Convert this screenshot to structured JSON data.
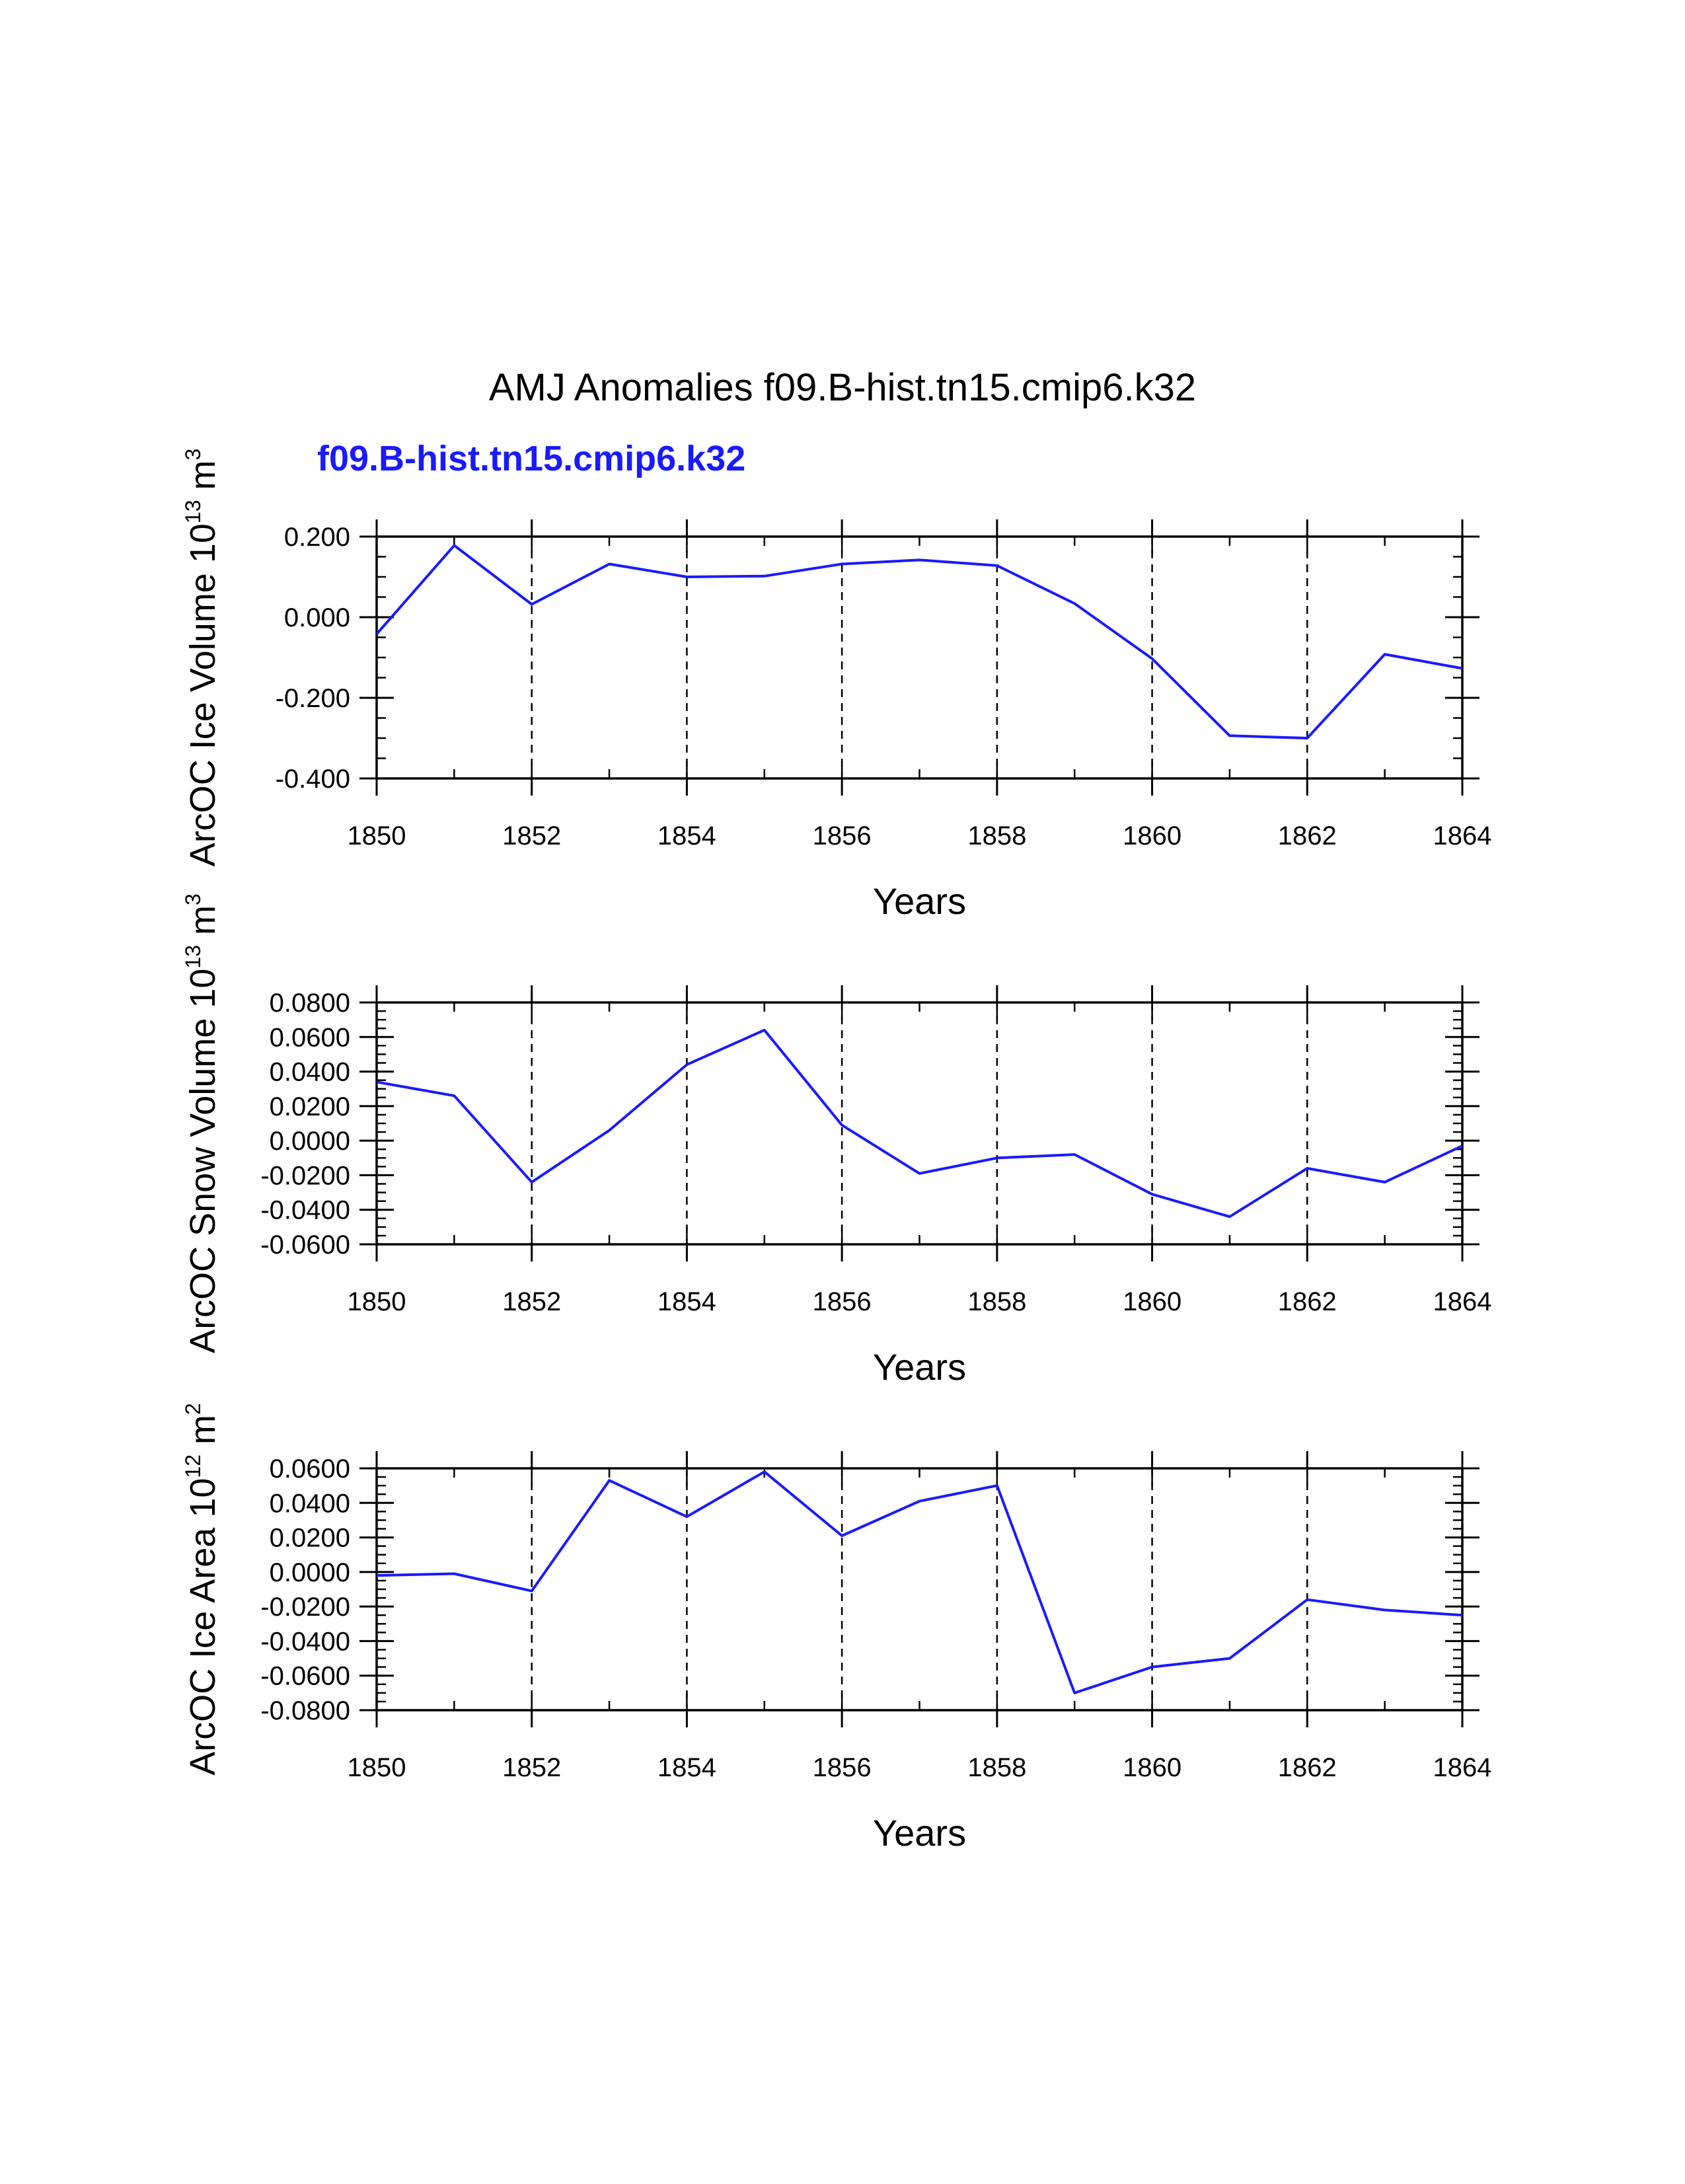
{
  "title": "AMJ Anomalies f09.B-hist.tn15.cmip6.k32",
  "subtitle": "f09.B-hist.tn15.cmip6.k32",
  "colors": {
    "line": "#1a1aff",
    "subtitle": "#1a1aff",
    "axis": "#000000",
    "grid": "#000000"
  },
  "chart_data": [
    {
      "type": "line",
      "ylabel_main": "ArcOC Ice Volume 10",
      "ylabel_exp": "13",
      "ylabel_unit": " m",
      "ylabel_unit_exp": "3",
      "xlabel": "Years",
      "xlim": [
        1850,
        1864
      ],
      "ylim": [
        -0.4,
        0.2
      ],
      "yticks": [
        -0.4,
        -0.2,
        0.0,
        0.2
      ],
      "ytick_labels": [
        "-0.400",
        "-0.200",
        "0.000",
        "0.200"
      ],
      "yminor_step": 0.05,
      "xticks": [
        1850,
        1852,
        1854,
        1856,
        1858,
        1860,
        1862,
        1864
      ],
      "xtick_labels": [
        "1850",
        "1852",
        "1854",
        "1856",
        "1858",
        "1860",
        "1862",
        "1864"
      ],
      "grid_x": [
        1852,
        1854,
        1856,
        1858,
        1860,
        1862
      ],
      "x": [
        1850,
        1851,
        1852,
        1853,
        1854,
        1855,
        1856,
        1857,
        1858,
        1859,
        1860,
        1861,
        1862,
        1863,
        1864
      ],
      "values": [
        -0.042,
        0.178,
        0.032,
        0.132,
        0.1,
        0.102,
        0.132,
        0.142,
        0.128,
        0.034,
        -0.103,
        -0.294,
        -0.3,
        -0.092,
        -0.127
      ]
    },
    {
      "type": "line",
      "ylabel_main": "ArcOC Snow Volume 10",
      "ylabel_exp": "13",
      "ylabel_unit": " m",
      "ylabel_unit_exp": "3",
      "xlabel": "Years",
      "xlim": [
        1850,
        1864
      ],
      "ylim": [
        -0.06,
        0.08
      ],
      "yticks": [
        -0.06,
        -0.04,
        -0.02,
        0.0,
        0.02,
        0.04,
        0.06,
        0.08
      ],
      "ytick_labels": [
        "-0.0600",
        "-0.0400",
        "-0.0200",
        "0.0000",
        "0.0200",
        "0.0400",
        "0.0600",
        "0.0800"
      ],
      "yminor_step": 0.005,
      "xticks": [
        1850,
        1852,
        1854,
        1856,
        1858,
        1860,
        1862,
        1864
      ],
      "xtick_labels": [
        "1850",
        "1852",
        "1854",
        "1856",
        "1858",
        "1860",
        "1862",
        "1864"
      ],
      "grid_x": [
        1852,
        1854,
        1856,
        1858,
        1860,
        1862
      ],
      "x": [
        1850,
        1851,
        1852,
        1853,
        1854,
        1855,
        1856,
        1857,
        1858,
        1859,
        1860,
        1861,
        1862,
        1863,
        1864
      ],
      "values": [
        0.034,
        0.026,
        -0.024,
        0.006,
        0.044,
        0.064,
        0.009,
        -0.019,
        -0.01,
        -0.008,
        -0.031,
        -0.044,
        -0.016,
        -0.024,
        -0.003
      ]
    },
    {
      "type": "line",
      "ylabel_main": "ArcOC Ice Area 10",
      "ylabel_exp": "12",
      "ylabel_unit": " m",
      "ylabel_unit_exp": "2",
      "xlabel": "Years",
      "xlim": [
        1850,
        1864
      ],
      "ylim": [
        -0.08,
        0.06
      ],
      "yticks": [
        -0.08,
        -0.06,
        -0.04,
        -0.02,
        0.0,
        0.02,
        0.04,
        0.06
      ],
      "ytick_labels": [
        "-0.0800",
        "-0.0600",
        "-0.0400",
        "-0.0200",
        "0.0000",
        "0.0200",
        "0.0400",
        "0.0600"
      ],
      "yminor_step": 0.005,
      "xticks": [
        1850,
        1852,
        1854,
        1856,
        1858,
        1860,
        1862,
        1864
      ],
      "xtick_labels": [
        "1850",
        "1852",
        "1854",
        "1856",
        "1858",
        "1860",
        "1862",
        "1864"
      ],
      "grid_x": [
        1852,
        1854,
        1856,
        1858,
        1860,
        1862
      ],
      "x": [
        1850,
        1851,
        1852,
        1853,
        1854,
        1855,
        1856,
        1857,
        1858,
        1859,
        1860,
        1861,
        1862,
        1863,
        1864
      ],
      "values": [
        -0.002,
        -0.001,
        -0.011,
        0.053,
        0.032,
        0.058,
        0.021,
        0.041,
        0.05,
        -0.07,
        -0.055,
        -0.05,
        -0.016,
        -0.022,
        -0.025
      ]
    }
  ]
}
